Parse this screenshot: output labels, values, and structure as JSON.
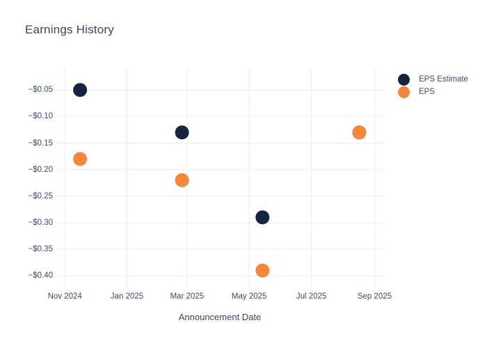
{
  "chart_data": {
    "type": "scatter",
    "title": "Earnings History",
    "xlabel": "Announcement Date",
    "ylabel": "",
    "grid": true,
    "legend_position": "right",
    "background_color": "#ffffff",
    "gridline_color": "#e8edf5",
    "text_color": "#3c4a66",
    "title_color": "#37455f",
    "xlim": [
      "2024-10-23",
      "2025-09-11"
    ],
    "ylim": [
      -0.422,
      -0.009
    ],
    "x_ticks": [
      {
        "date": "2024-11-01",
        "label": "Nov 2024"
      },
      {
        "date": "2025-01-01",
        "label": "Jan 2025"
      },
      {
        "date": "2025-03-01",
        "label": "Mar 2025"
      },
      {
        "date": "2025-05-01",
        "label": "May 2025"
      },
      {
        "date": "2025-07-01",
        "label": "Jul 2025"
      },
      {
        "date": "2025-09-01",
        "label": "Sep 2025"
      }
    ],
    "y_ticks": [
      {
        "value": -0.05,
        "label": "−$0.05"
      },
      {
        "value": -0.1,
        "label": "−$0.10"
      },
      {
        "value": -0.15,
        "label": "−$0.15"
      },
      {
        "value": -0.2,
        "label": "−$0.20"
      },
      {
        "value": -0.25,
        "label": "−$0.25"
      },
      {
        "value": -0.3,
        "label": "−$0.30"
      },
      {
        "value": -0.35,
        "label": "−$0.35"
      },
      {
        "value": -0.4,
        "label": "−$0.40"
      }
    ],
    "series": [
      {
        "name": "EPS Estimate",
        "color": "#16243e",
        "points": [
          {
            "x": "2024-11-16",
            "y": -0.05
          },
          {
            "x": "2025-02-24",
            "y": -0.13
          },
          {
            "x": "2025-05-14",
            "y": -0.29
          },
          {
            "x": "2025-08-17",
            "y": -0.13
          }
        ]
      },
      {
        "name": "EPS",
        "color": "#f5873d",
        "points": [
          {
            "x": "2024-11-16",
            "y": -0.18
          },
          {
            "x": "2025-02-24",
            "y": -0.22
          },
          {
            "x": "2025-05-14",
            "y": -0.39
          },
          {
            "x": "2025-08-17",
            "y": -0.13
          }
        ]
      }
    ]
  }
}
